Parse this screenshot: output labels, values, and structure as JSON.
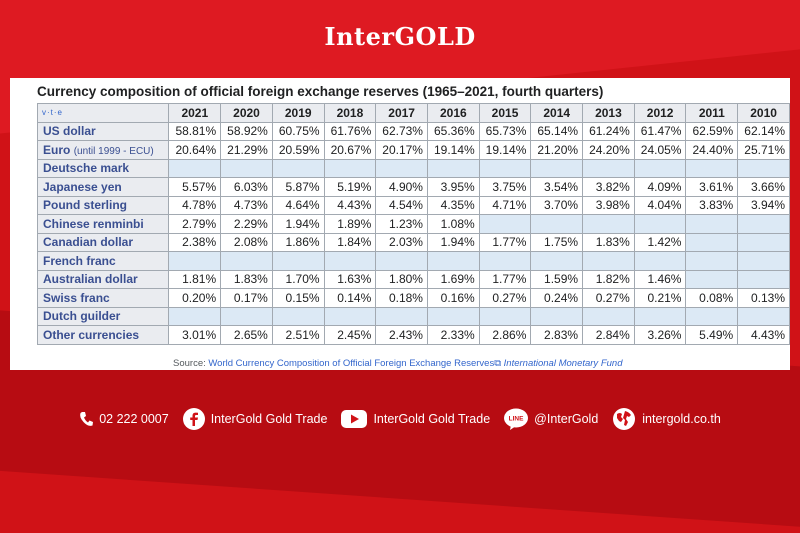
{
  "brand": "InterGOLD",
  "table": {
    "caption": "Currency composition of official foreign exchange reserves (1965–2021, fourth quarters)",
    "vte": "v·t·e",
    "years": [
      "2021",
      "2020",
      "2019",
      "2018",
      "2017",
      "2016",
      "2015",
      "2014",
      "2013",
      "2012",
      "2011",
      "2010"
    ],
    "rows": [
      {
        "name": "US dollar",
        "note": "",
        "values": [
          "58.81%",
          "58.92%",
          "60.75%",
          "61.76%",
          "62.73%",
          "65.36%",
          "65.73%",
          "65.14%",
          "61.24%",
          "61.47%",
          "62.59%",
          "62.14%"
        ]
      },
      {
        "name": "Euro",
        "note": "(until 1999 - ECU)",
        "values": [
          "20.64%",
          "21.29%",
          "20.59%",
          "20.67%",
          "20.17%",
          "19.14%",
          "19.14%",
          "21.20%",
          "24.20%",
          "24.05%",
          "24.40%",
          "25.71%"
        ]
      },
      {
        "name": "Deutsche mark",
        "note": "",
        "values": [
          "",
          "",
          "",
          "",
          "",
          "",
          "",
          "",
          "",
          "",
          "",
          ""
        ]
      },
      {
        "name": "Japanese yen",
        "note": "",
        "values": [
          "5.57%",
          "6.03%",
          "5.87%",
          "5.19%",
          "4.90%",
          "3.95%",
          "3.75%",
          "3.54%",
          "3.82%",
          "4.09%",
          "3.61%",
          "3.66%"
        ]
      },
      {
        "name": "Pound sterling",
        "note": "",
        "values": [
          "4.78%",
          "4.73%",
          "4.64%",
          "4.43%",
          "4.54%",
          "4.35%",
          "4.71%",
          "3.70%",
          "3.98%",
          "4.04%",
          "3.83%",
          "3.94%"
        ]
      },
      {
        "name": "Chinese renminbi",
        "note": "",
        "values": [
          "2.79%",
          "2.29%",
          "1.94%",
          "1.89%",
          "1.23%",
          "1.08%",
          "",
          "",
          "",
          "",
          "",
          ""
        ]
      },
      {
        "name": "Canadian dollar",
        "note": "",
        "values": [
          "2.38%",
          "2.08%",
          "1.86%",
          "1.84%",
          "2.03%",
          "1.94%",
          "1.77%",
          "1.75%",
          "1.83%",
          "1.42%",
          "",
          ""
        ]
      },
      {
        "name": "French franc",
        "note": "",
        "values": [
          "",
          "",
          "",
          "",
          "",
          "",
          "",
          "",
          "",
          "",
          "",
          ""
        ]
      },
      {
        "name": "Australian dollar",
        "note": "",
        "values": [
          "1.81%",
          "1.83%",
          "1.70%",
          "1.63%",
          "1.80%",
          "1.69%",
          "1.77%",
          "1.59%",
          "1.82%",
          "1.46%",
          "",
          ""
        ]
      },
      {
        "name": "Swiss franc",
        "note": "",
        "values": [
          "0.20%",
          "0.17%",
          "0.15%",
          "0.14%",
          "0.18%",
          "0.16%",
          "0.27%",
          "0.24%",
          "0.27%",
          "0.21%",
          "0.08%",
          "0.13%"
        ]
      },
      {
        "name": "Dutch guilder",
        "note": "",
        "values": [
          "",
          "",
          "",
          "",
          "",
          "",
          "",
          "",
          "",
          "",
          "",
          ""
        ]
      },
      {
        "name": "Other currencies",
        "note": "",
        "values": [
          "3.01%",
          "2.65%",
          "2.51%",
          "2.45%",
          "2.43%",
          "2.33%",
          "2.86%",
          "2.83%",
          "2.84%",
          "3.26%",
          "5.49%",
          "4.43%"
        ]
      }
    ],
    "source": {
      "prefix": "Source: ",
      "link_text": "World Currency Composition of Official Foreign Exchange Reserves",
      "link_glyph": "⧉",
      "publisher": "International Monetary Fund"
    }
  },
  "footer": {
    "phone": "02 222 0007",
    "facebook": "InterGold Gold Trade",
    "youtube": "InterGold Gold Trade",
    "line_badge": "LINE",
    "line": "@InterGold",
    "website": "intergold.co.th"
  },
  "colors": {
    "background": "#d01217",
    "header_cell": "#eaecf0",
    "empty_cell": "#dce9f5",
    "currency_text": "#3a4f91",
    "link": "#3366cc"
  }
}
